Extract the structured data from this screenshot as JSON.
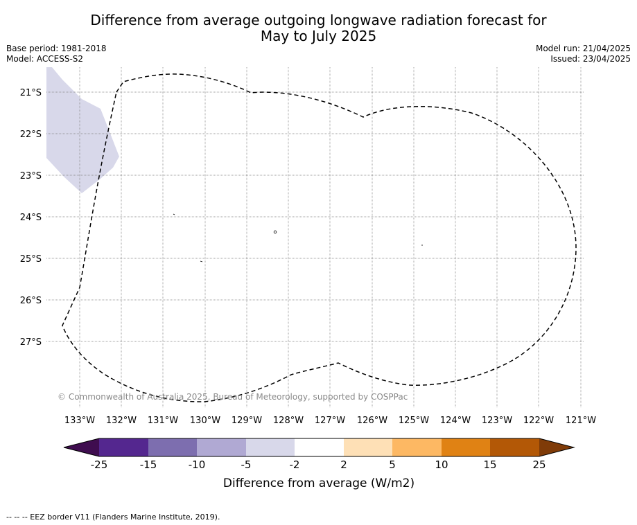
{
  "header": {
    "title_line1": "Difference from average outgoing longwave radiation forecast for",
    "title_line2": "May to July 2025",
    "base_period": "Base period: 1981-2018",
    "model": "Model: ACCESS-S2",
    "model_run": "Model run: 21/04/2025",
    "issued": "Issued: 23/04/2025"
  },
  "map": {
    "lon_labels": [
      "133°W",
      "132°W",
      "131°W",
      "130°W",
      "129°W",
      "128°W",
      "127°W",
      "126°W",
      "125°W",
      "124°W",
      "123°W",
      "122°W",
      "121°W"
    ],
    "lat_labels": [
      "21°S",
      "22°S",
      "23°S",
      "24°S",
      "25°S",
      "26°S",
      "27°S"
    ],
    "copyright": "© Commonwealth of Australia 2025, Bureau of Meteorology, supported by COSPPac",
    "anomaly_fill_color": "#d8d8ea",
    "gridline_color": "#808080",
    "border_style": "dashed",
    "shaded_region_category": "-5 to -2"
  },
  "colorbar": {
    "title": "Difference from average (W/m2)",
    "ticks": [
      "-25",
      "-15",
      "-10",
      "-5",
      "-2",
      "2",
      "5",
      "10",
      "15",
      "25"
    ],
    "colors": [
      "#3f0d4f",
      "#54278f",
      "#7d6eaf",
      "#b0a9d3",
      "#d8d8ea",
      "#ffffff",
      "#fee0b6",
      "#fdb863",
      "#e08214",
      "#b35806",
      "#7f3b08"
    ]
  },
  "footer": {
    "legend_text": "--  --  -- EEZ border V11 (Flanders Marine Institute, 2019)."
  }
}
